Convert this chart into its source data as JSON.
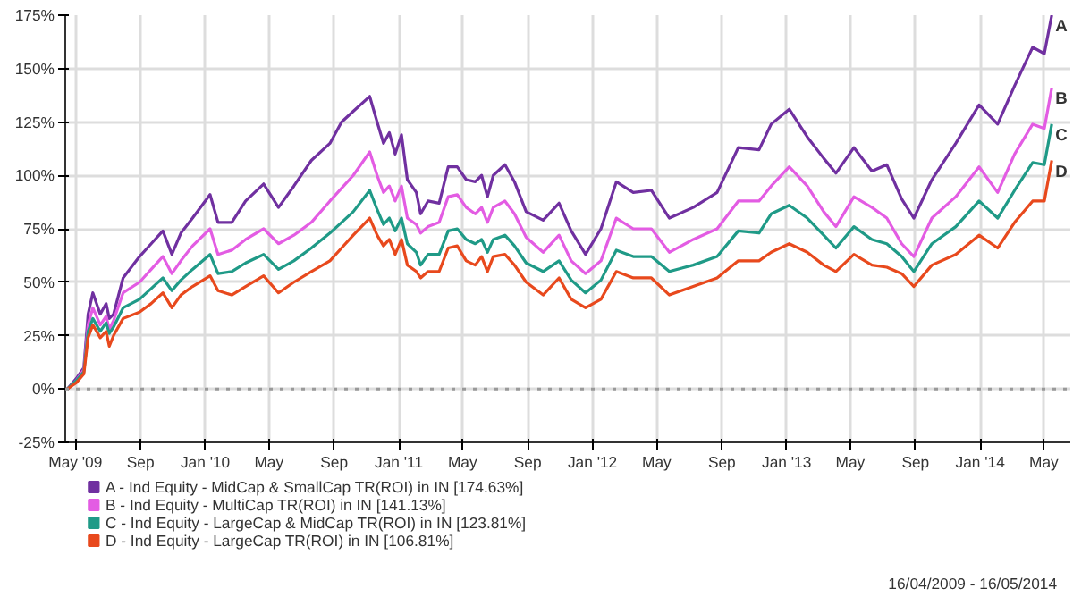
{
  "chart_data": {
    "type": "line",
    "x": [
      "2009-04-16",
      "2009-05-03",
      "2009-05-17",
      "2009-05-25",
      "2009-06-03",
      "2009-06-17",
      "2009-06-28",
      "2009-07-04",
      "2009-07-12",
      "2009-07-30",
      "2009-08-30",
      "2009-09-21",
      "2009-10-13",
      "2009-10-30",
      "2009-11-16",
      "2009-12-08",
      "2010-01-10",
      "2010-01-25",
      "2010-02-20",
      "2010-03-18",
      "2010-04-21",
      "2010-05-19",
      "2010-06-17",
      "2010-07-20",
      "2010-08-24",
      "2010-09-15",
      "2010-10-07",
      "2010-11-07",
      "2010-11-21",
      "2010-12-03",
      "2010-12-14",
      "2010-12-25",
      "2011-01-06",
      "2011-01-17",
      "2011-02-03",
      "2011-02-11",
      "2011-02-25",
      "2011-03-18",
      "2011-04-04",
      "2011-04-21",
      "2011-05-08",
      "2011-05-25",
      "2011-06-06",
      "2011-06-17",
      "2011-06-28",
      "2011-07-20",
      "2011-08-07",
      "2011-08-29",
      "2011-09-30",
      "2011-10-30",
      "2011-11-22",
      "2011-12-19",
      "2012-01-17",
      "2012-02-15",
      "2012-03-18",
      "2012-04-21",
      "2012-05-25",
      "2012-07-09",
      "2012-08-23",
      "2012-10-02",
      "2012-11-10",
      "2012-12-03",
      "2013-01-06",
      "2013-02-09",
      "2013-03-12",
      "2013-04-04",
      "2013-05-08",
      "2013-06-11",
      "2013-07-09",
      "2013-08-06",
      "2013-08-29",
      "2013-10-02",
      "2013-11-16",
      "2013-12-30",
      "2014-02-03",
      "2014-03-07",
      "2014-04-10",
      "2014-05-02",
      "2014-05-16"
    ],
    "series": [
      {
        "name": "A - Ind Equity - MidCap & SmallCap TR(ROI) in IN [174.63%]",
        "color": "#7030a0",
        "values": [
          0,
          5,
          10,
          35,
          45,
          35,
          40,
          33,
          35,
          52,
          62,
          68,
          74,
          63,
          73,
          80,
          91,
          78,
          78,
          88,
          96,
          85,
          95,
          107,
          115,
          125,
          130,
          137,
          125,
          115,
          120,
          110,
          119,
          98,
          92,
          82,
          88,
          87,
          104,
          104,
          98,
          97,
          100,
          90,
          100,
          105,
          97,
          83,
          79,
          87,
          74,
          63,
          75,
          97,
          92,
          93,
          80,
          85,
          92,
          113,
          112,
          124,
          131,
          118,
          108,
          101,
          113,
          102,
          105,
          89,
          80,
          98,
          115,
          133,
          124,
          142,
          160,
          157,
          175
        ]
      },
      {
        "name": "B - Ind Equity - MultiCap TR(ROI) in IN [141.13%]",
        "color": "#e35ce3",
        "values": [
          0,
          4,
          9,
          30,
          38,
          30,
          34,
          28,
          32,
          45,
          50,
          56,
          62,
          54,
          60,
          67,
          75,
          63,
          65,
          70,
          75,
          68,
          72,
          78,
          88,
          94,
          100,
          111,
          100,
          92,
          95,
          88,
          95,
          80,
          77,
          73,
          76,
          78,
          90,
          91,
          85,
          82,
          85,
          78,
          85,
          88,
          82,
          71,
          64,
          72,
          60,
          54,
          60,
          80,
          75,
          75,
          64,
          70,
          75,
          88,
          88,
          95,
          104,
          95,
          83,
          76,
          90,
          85,
          80,
          68,
          62,
          80,
          90,
          104,
          92,
          110,
          124,
          122,
          141
        ]
      },
      {
        "name": "C - Ind Equity - LargeCap & MidCap TR(ROI) in IN [123.81%]",
        "color": "#1f9a87",
        "values": [
          0,
          4,
          8,
          27,
          33,
          27,
          31,
          26,
          29,
          38,
          42,
          47,
          52,
          46,
          51,
          56,
          63,
          54,
          55,
          59,
          63,
          56,
          60,
          66,
          73,
          78,
          83,
          93,
          84,
          77,
          80,
          74,
          80,
          68,
          64,
          58,
          63,
          63,
          74,
          75,
          70,
          68,
          70,
          64,
          70,
          72,
          67,
          59,
          55,
          60,
          51,
          45,
          51,
          65,
          62,
          62,
          55,
          58,
          62,
          74,
          73,
          82,
          86,
          80,
          72,
          66,
          76,
          70,
          68,
          62,
          55,
          68,
          76,
          88,
          80,
          93,
          106,
          105,
          124
        ]
      },
      {
        "name": "D - Ind Equity - LargeCap TR(ROI) in IN [106.81%]",
        "color": "#e8491d",
        "values": [
          0,
          3,
          7,
          24,
          30,
          24,
          27,
          20,
          25,
          33,
          36,
          40,
          45,
          38,
          44,
          48,
          53,
          46,
          44,
          48,
          53,
          45,
          50,
          55,
          60,
          66,
          72,
          80,
          72,
          67,
          70,
          63,
          70,
          58,
          55,
          52,
          55,
          55,
          66,
          67,
          60,
          58,
          62,
          55,
          62,
          63,
          58,
          50,
          44,
          52,
          42,
          38,
          42,
          55,
          52,
          52,
          44,
          48,
          52,
          60,
          60,
          64,
          68,
          64,
          58,
          55,
          63,
          58,
          57,
          54,
          48,
          58,
          63,
          72,
          66,
          78,
          88,
          88,
          107
        ]
      }
    ],
    "xlim": [
      "2009-04-12",
      "2014-06-20"
    ],
    "xticks": [
      {
        "value": "2009-05-01",
        "label": "May '09"
      },
      {
        "value": "2009-09-01",
        "label": "Sep"
      },
      {
        "value": "2010-01-01",
        "label": "Jan '10"
      },
      {
        "value": "2010-05-01",
        "label": "May"
      },
      {
        "value": "2010-09-01",
        "label": "Sep"
      },
      {
        "value": "2011-01-01",
        "label": "Jan '11"
      },
      {
        "value": "2011-05-01",
        "label": "May"
      },
      {
        "value": "2011-09-01",
        "label": "Sep"
      },
      {
        "value": "2012-01-01",
        "label": "Jan '12"
      },
      {
        "value": "2012-05-01",
        "label": "May"
      },
      {
        "value": "2012-09-01",
        "label": "Sep"
      },
      {
        "value": "2013-01-01",
        "label": "Jan '13"
      },
      {
        "value": "2013-05-01",
        "label": "May"
      },
      {
        "value": "2013-09-01",
        "label": "Sep"
      },
      {
        "value": "2014-01-01",
        "label": "Jan '14"
      },
      {
        "value": "2014-05-01",
        "label": "May"
      }
    ],
    "ylim": [
      -25,
      175
    ],
    "yticks": [
      {
        "value": -25,
        "label": "-25%"
      },
      {
        "value": 0,
        "label": "0%"
      },
      {
        "value": 25,
        "label": "25%"
      },
      {
        "value": 50,
        "label": "50%"
      },
      {
        "value": 75,
        "label": "75%"
      },
      {
        "value": 100,
        "label": "100%"
      },
      {
        "value": 125,
        "label": "125%"
      },
      {
        "value": 150,
        "label": "150%"
      },
      {
        "value": 175,
        "label": "175%"
      }
    ],
    "ref_lines": [
      {
        "axis": "y",
        "value": 0,
        "color": "#999999",
        "line_style": "dotted"
      }
    ],
    "annotations": [
      {
        "text": "A",
        "x": "2014-05-16",
        "y": 175
      },
      {
        "text": "B",
        "x": "2014-05-16",
        "y": 141
      },
      {
        "text": "C",
        "x": "2014-05-16",
        "y": 124
      },
      {
        "text": "D",
        "x": "2014-05-16",
        "y": 107
      },
      "16/04/2009 - 16/05/2014"
    ],
    "grid": true,
    "legend": "bottom",
    "marker": "none",
    "line_style": "solid"
  }
}
